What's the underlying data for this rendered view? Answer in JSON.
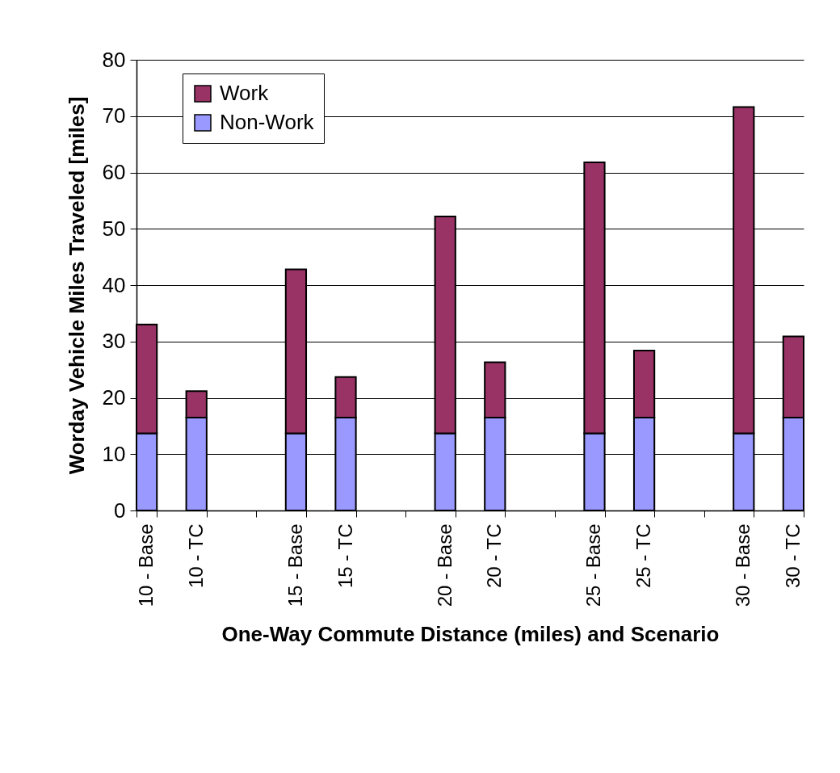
{
  "chart_data": {
    "type": "bar",
    "stacked": true,
    "xlabel": "One-Way Commute Distance (miles) and Scenario",
    "ylabel": "Worday Vehicle Miles Traveled [miles]",
    "categories": [
      "10 - Base",
      "10 - TC",
      null,
      "15 - Base",
      "15 - TC",
      null,
      "20 - Base",
      "20 - TC",
      null,
      "25 - Base",
      "25 - TC",
      null,
      "30 - Base",
      "30 - TC"
    ],
    "series": [
      {
        "name": "Non-Work",
        "color": "#9999ff",
        "values": [
          13.7,
          16.5,
          null,
          13.7,
          16.5,
          null,
          13.7,
          16.5,
          null,
          13.7,
          16.5,
          null,
          13.7,
          16.5
        ]
      },
      {
        "name": "Work",
        "color": "#993366",
        "values": [
          19.3,
          4.7,
          null,
          29.1,
          7.2,
          null,
          38.5,
          9.8,
          null,
          48.1,
          11.9,
          null,
          57.9,
          14.4
        ]
      }
    ],
    "ylim": [
      0,
      80
    ],
    "yticks": [
      0,
      10,
      20,
      30,
      40,
      50,
      60,
      70,
      80
    ],
    "grid": "y",
    "legend": "top left"
  }
}
